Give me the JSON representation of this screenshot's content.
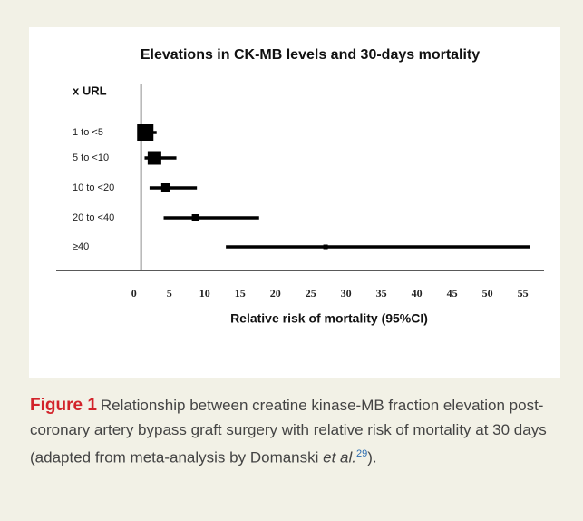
{
  "chart_data": {
    "type": "forest",
    "title": "Elevations in CK-MB levels and 30-days mortality",
    "y_label": "x URL",
    "x_label": "Relative risk of mortality (95%CI)",
    "categories": [
      "1 to <5",
      "5 to <10",
      "10 to <20",
      "20 to <40",
      "≥40"
    ],
    "values": [
      1.6,
      2.9,
      4.5,
      8.7,
      27.1
    ],
    "lower": [
      0.8,
      1.5,
      2.2,
      4.2,
      13
    ],
    "upper": [
      3.2,
      6,
      8.9,
      17.7,
      56
    ],
    "reference_line": 1,
    "color": "#000000",
    "xlim": [
      -11,
      58
    ],
    "xticks": [
      0,
      5,
      10,
      15,
      20,
      25,
      30,
      35,
      40,
      45,
      50,
      55
    ]
  },
  "caption": {
    "label": "Figure 1",
    "text": "Relationship between creatine kinase-MB fraction elevation post-coronary artery bypass graft surgery with relative risk of mortality at 30 days (adapted from meta-analysis by Domanski ",
    "author_suffix": "et al.",
    "reference": "29",
    "end": ")."
  }
}
